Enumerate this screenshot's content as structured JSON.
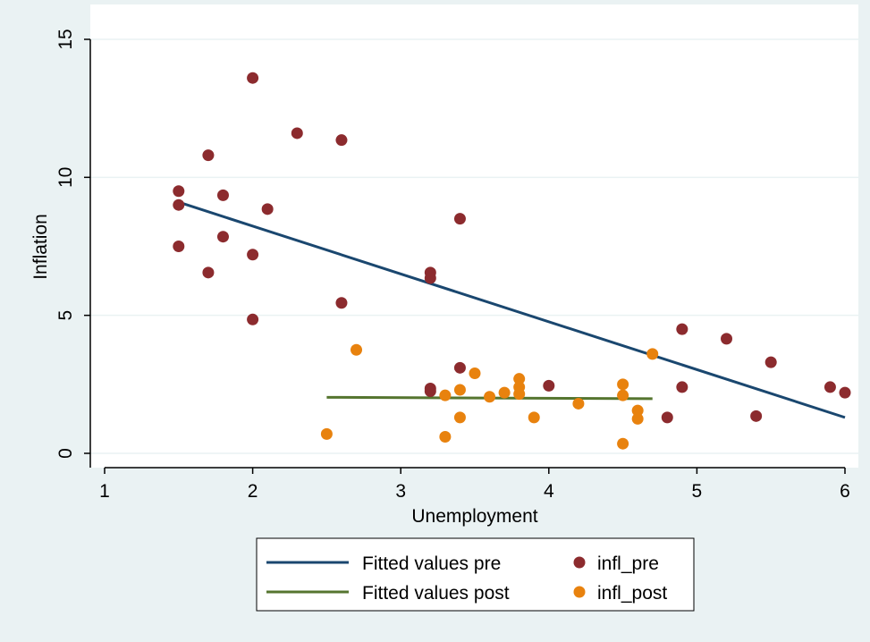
{
  "chart_data": {
    "type": "scatter",
    "xlabel": "Unemployment",
    "ylabel": "Inflation",
    "xlim": [
      1,
      6
    ],
    "ylim": [
      0,
      15
    ],
    "xticks": [
      1,
      2,
      3,
      4,
      5,
      6
    ],
    "yticks": [
      0,
      5,
      10,
      15
    ],
    "grid": true,
    "legend_placement": "bottom",
    "series": [
      {
        "name": "infl_pre",
        "kind": "scatter",
        "color": "#8c2b2e",
        "points": [
          [
            1.5,
            9.5
          ],
          [
            1.5,
            9.0
          ],
          [
            1.5,
            7.5
          ],
          [
            1.7,
            10.8
          ],
          [
            1.7,
            6.55
          ],
          [
            1.8,
            9.35
          ],
          [
            1.8,
            7.85
          ],
          [
            2.0,
            13.6
          ],
          [
            2.0,
            7.2
          ],
          [
            2.0,
            4.85
          ],
          [
            2.1,
            8.85
          ],
          [
            2.3,
            11.6
          ],
          [
            2.6,
            11.35
          ],
          [
            2.6,
            5.45
          ],
          [
            3.2,
            6.55
          ],
          [
            3.2,
            6.35
          ],
          [
            3.2,
            2.35
          ],
          [
            3.2,
            2.25
          ],
          [
            3.4,
            8.5
          ],
          [
            3.4,
            3.1
          ],
          [
            4.0,
            2.45
          ],
          [
            4.8,
            1.3
          ],
          [
            4.9,
            4.5
          ],
          [
            4.9,
            2.4
          ],
          [
            5.2,
            4.15
          ],
          [
            5.4,
            1.35
          ],
          [
            5.5,
            3.3
          ],
          [
            5.9,
            2.4
          ],
          [
            6.0,
            2.2
          ]
        ]
      },
      {
        "name": "infl_post",
        "kind": "scatter",
        "color": "#e8820e",
        "points": [
          [
            2.5,
            0.7
          ],
          [
            2.7,
            3.75
          ],
          [
            3.3,
            2.1
          ],
          [
            3.3,
            0.6
          ],
          [
            3.4,
            2.3
          ],
          [
            3.4,
            1.3
          ],
          [
            3.5,
            2.9
          ],
          [
            3.6,
            2.05
          ],
          [
            3.7,
            2.2
          ],
          [
            3.8,
            2.7
          ],
          [
            3.8,
            2.4
          ],
          [
            3.8,
            2.15
          ],
          [
            3.9,
            1.3
          ],
          [
            4.2,
            1.8
          ],
          [
            4.5,
            2.5
          ],
          [
            4.5,
            2.1
          ],
          [
            4.5,
            0.35
          ],
          [
            4.6,
            1.55
          ],
          [
            4.6,
            1.25
          ],
          [
            4.7,
            3.6
          ]
        ]
      },
      {
        "name": "Fitted values pre",
        "kind": "line",
        "color": "#1a476f",
        "points": [
          [
            1.5,
            9.1
          ],
          [
            6.0,
            1.3
          ]
        ]
      },
      {
        "name": "Fitted values post",
        "kind": "line",
        "color": "#55752f",
        "points": [
          [
            2.5,
            2.03
          ],
          [
            4.7,
            1.98
          ]
        ]
      }
    ],
    "legend": [
      {
        "label": "Fitted values pre",
        "kind": "line",
        "color": "#1a476f"
      },
      {
        "label": "infl_pre",
        "kind": "marker",
        "color": "#8c2b2e"
      },
      {
        "label": "Fitted values post",
        "kind": "line",
        "color": "#55752f"
      },
      {
        "label": "infl_post",
        "kind": "marker",
        "color": "#e8820e"
      }
    ]
  }
}
